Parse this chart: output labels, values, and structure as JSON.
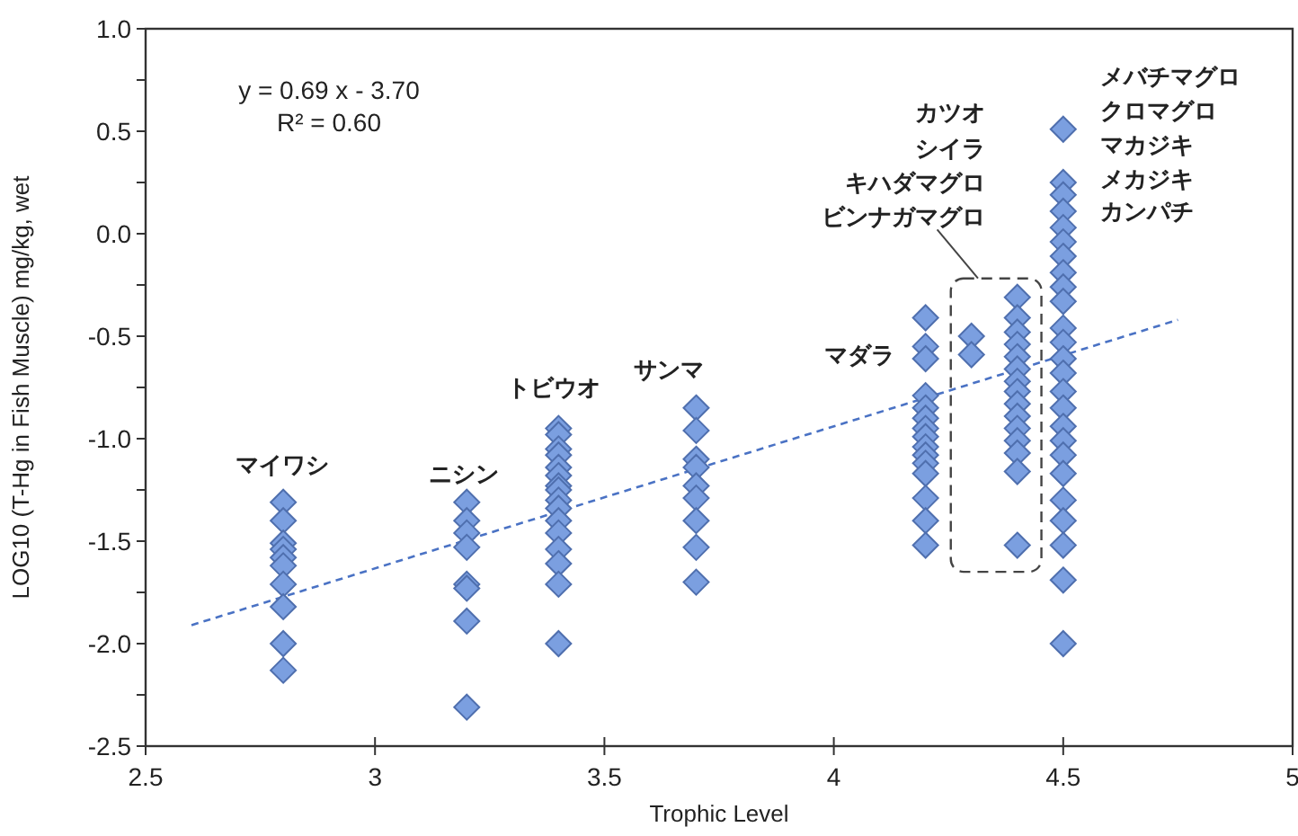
{
  "chart_data": {
    "type": "scatter",
    "xlabel": "Trophic Level",
    "ylabel": "LOG10 (T-Hg in Fish Muscle) mg/kg, wet",
    "xlim": [
      2.5,
      5
    ],
    "xticks": [
      2.5,
      3,
      3.5,
      4,
      4.5,
      5
    ],
    "ylim": [
      -2.5,
      1.0
    ],
    "yticks": [
      {
        "value": -2.5,
        "label": "-2.5"
      },
      {
        "value": -2.25,
        "label": null
      },
      {
        "value": -2,
        "label": "-2.0"
      },
      {
        "value": -1.75,
        "label": null
      },
      {
        "value": -1.5,
        "label": "-1.5"
      },
      {
        "value": -1.25,
        "label": null
      },
      {
        "value": -1,
        "label": "-1.0"
      },
      {
        "value": -0.75,
        "label": null
      },
      {
        "value": -0.5,
        "label": "-0.5"
      },
      {
        "value": -0.25,
        "label": null
      },
      {
        "value": 0,
        "label": "0.0"
      },
      {
        "value": 0.25,
        "label": null
      },
      {
        "value": 0.5,
        "label": "0.5"
      },
      {
        "value": 0.75,
        "label": null
      },
      {
        "value": 1,
        "label": "1.0"
      }
    ],
    "series": [
      {
        "type": "scatter",
        "marker": "diamond",
        "color": "#7b9fe0",
        "x": [
          2.8,
          2.8,
          2.8,
          2.8,
          2.8,
          2.8,
          2.8,
          2.8,
          2.8,
          2.8,
          3.2,
          3.2,
          3.2,
          3.2,
          3.2,
          3.2,
          3.2,
          3.2,
          3.4,
          3.4,
          3.4,
          3.4,
          3.4,
          3.4,
          3.4,
          3.4,
          3.4,
          3.4,
          3.4,
          3.4,
          3.4,
          3.4,
          3.4,
          3.4,
          3.7,
          3.7,
          3.7,
          3.7,
          3.7,
          3.7,
          3.7,
          3.7,
          3.7,
          4.2,
          4.2,
          4.2,
          4.2,
          4.2,
          4.2,
          4.2,
          4.2,
          4.2,
          4.2,
          4.2,
          4.2,
          4.2,
          4.2,
          4.2,
          4.3,
          4.3,
          4.4,
          4.4,
          4.4,
          4.4,
          4.4,
          4.4,
          4.4,
          4.4,
          4.4,
          4.4,
          4.4,
          4.4,
          4.4,
          4.4,
          4.4,
          4.5,
          4.5,
          4.5,
          4.5,
          4.5,
          4.5,
          4.5,
          4.5,
          4.5,
          4.5,
          4.5,
          4.5,
          4.5,
          4.5,
          4.5,
          4.5,
          4.5,
          4.5,
          4.5,
          4.5,
          4.5,
          4.5,
          4.5,
          4.5,
          4.5
        ],
        "values": [
          -1.31,
          -1.4,
          -1.51,
          -1.54,
          -1.58,
          -1.62,
          -1.71,
          -1.82,
          -2.0,
          -2.13,
          -1.31,
          -1.4,
          -1.46,
          -1.53,
          -1.71,
          -1.73,
          -1.89,
          -2.31,
          -0.95,
          -0.98,
          -1.05,
          -1.08,
          -1.14,
          -1.18,
          -1.23,
          -1.25,
          -1.3,
          -1.34,
          -1.4,
          -1.46,
          -1.54,
          -1.61,
          -1.71,
          -2.0,
          -0.85,
          -0.96,
          -1.1,
          -1.14,
          -1.23,
          -1.29,
          -1.4,
          -1.53,
          -1.7,
          -0.41,
          -0.55,
          -0.61,
          -0.79,
          -0.85,
          -0.9,
          -0.95,
          -0.99,
          -1.04,
          -1.08,
          -1.12,
          -1.17,
          -1.29,
          -1.4,
          -1.52,
          -0.5,
          -0.59,
          -0.31,
          -0.41,
          -0.48,
          -0.54,
          -0.6,
          -0.66,
          -0.72,
          -0.77,
          -0.83,
          -0.89,
          -0.95,
          -1.01,
          -1.07,
          -1.16,
          -1.52,
          0.51,
          0.25,
          0.19,
          0.11,
          0.03,
          -0.04,
          -0.11,
          -0.19,
          -0.26,
          -0.33,
          -0.46,
          -0.53,
          -0.61,
          -0.68,
          -0.77,
          -0.85,
          -0.94,
          -1.01,
          -1.08,
          -1.17,
          -1.3,
          -1.4,
          -1.52,
          -1.69,
          -2.0
        ]
      },
      {
        "type": "line",
        "marker": "none",
        "color": "#4a72c4",
        "line_style": "dashed",
        "x": [
          2.6,
          4.75
        ],
        "values": [
          -1.91,
          -0.42
        ]
      }
    ],
    "annotations": [
      "y = 0.69 x - 3.70",
      "R² = 0.60",
      "マイワシ",
      "ニシン",
      "トビウオ",
      "サンマ",
      "マダラ",
      "カツオ",
      "シイラ",
      "キハダマグロ",
      "ビンナガマグロ",
      "メバチマグロ",
      "クロマグロ",
      "マカジキ",
      "メカジキ",
      "カンパチ"
    ]
  }
}
